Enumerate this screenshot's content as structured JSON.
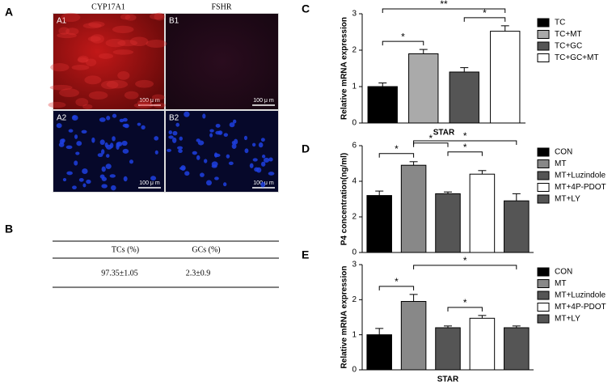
{
  "panel_labels": [
    "A",
    "B",
    "C",
    "D",
    "E"
  ],
  "images": {
    "columns": [
      "CYP17A1",
      "FSHR"
    ],
    "tiles": [
      {
        "label": "A1",
        "scale": "100 μ m"
      },
      {
        "label": "B1",
        "scale": "100 μ m"
      },
      {
        "label": "A2",
        "scale": "100 μ m"
      },
      {
        "label": "B2",
        "scale": "100 μ m"
      }
    ]
  },
  "table": {
    "header": [
      "TCs (%)",
      "GCs (%)"
    ],
    "rows": [
      [
        "97.35±1.05",
        "2.3±0.9"
      ]
    ]
  },
  "chart_data": [
    {
      "type": "bar",
      "ylabel": "Relative mRNA expression",
      "xlabel": "STAR",
      "categories": [
        "TC",
        "TC+MT",
        "TC+GC",
        "TC+GC+MT"
      ],
      "values": [
        1.0,
        1.9,
        1.4,
        2.52
      ],
      "errors": [
        0.1,
        0.12,
        0.12,
        0.15
      ],
      "colors": [
        "#000000",
        "#aaaaaa",
        "#555555",
        "#ffffff"
      ],
      "ylim": [
        0,
        3
      ],
      "yticks": [
        0,
        1,
        2,
        3
      ],
      "significance": [
        {
          "label": "*",
          "pair": [
            0,
            1
          ]
        },
        {
          "label": "*",
          "pair": [
            2,
            3
          ]
        },
        {
          "label": "**",
          "pair": [
            0,
            3
          ]
        }
      ]
    },
    {
      "type": "bar",
      "ylabel": "P4 concentration(ng/ml)",
      "categories": [
        "CON",
        "MT",
        "MT+Luzindole",
        "MT+4P-PDOT",
        "MT+LY"
      ],
      "values": [
        3.2,
        4.9,
        3.3,
        4.4,
        2.9
      ],
      "errors": [
        0.25,
        0.2,
        0.1,
        0.2,
        0.4
      ],
      "colors": [
        "#000000",
        "#888888",
        "#555555",
        "#ffffff",
        "#555555"
      ],
      "ylim": [
        0,
        6
      ],
      "yticks": [
        0,
        2,
        4,
        6
      ],
      "significance": [
        {
          "label": "*",
          "pair": [
            0,
            1
          ]
        },
        {
          "label": "*",
          "pair": [
            1,
            2
          ]
        },
        {
          "label": "*",
          "pair": [
            2,
            3
          ]
        },
        {
          "label": "*",
          "pair": [
            1,
            4
          ]
        }
      ]
    },
    {
      "type": "bar",
      "ylabel": "Relative mRNA expression",
      "xlabel": "STAR",
      "categories": [
        "CON",
        "MT",
        "MT+Luzindole",
        "MT+4P-PDOT",
        "MT+LY"
      ],
      "values": [
        1.0,
        1.95,
        1.2,
        1.47,
        1.2
      ],
      "errors": [
        0.18,
        0.2,
        0.05,
        0.08,
        0.05
      ],
      "colors": [
        "#000000",
        "#888888",
        "#555555",
        "#ffffff",
        "#555555"
      ],
      "ylim": [
        0,
        3
      ],
      "yticks": [
        0,
        1,
        2,
        3
      ],
      "significance": [
        {
          "label": "*",
          "pair": [
            0,
            1
          ]
        },
        {
          "label": "*",
          "pair": [
            2,
            3
          ]
        },
        {
          "label": "*",
          "pair": [
            1,
            4
          ]
        }
      ]
    }
  ]
}
